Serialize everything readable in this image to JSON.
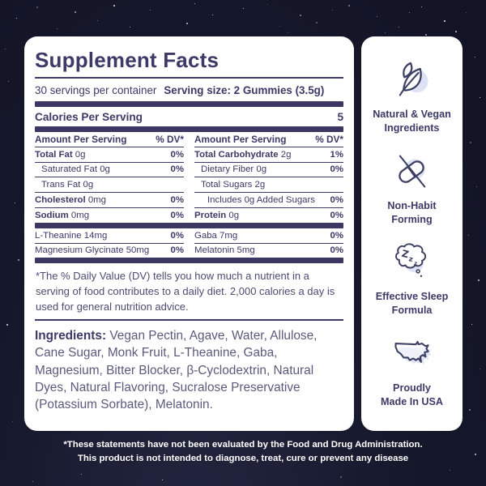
{
  "panel": {
    "title": "Supplement Facts",
    "servings_line": "30 servings per container",
    "serving_size_line": "Serving size: 2 Gummies (3.5g)",
    "calories_label": "Calories Per Serving",
    "calories_value": "5",
    "table": {
      "header_label": "Amount Per Serving",
      "header_dv": "% DV*",
      "left_rows": [
        {
          "name": "Total Fat",
          "amount": "0g",
          "dv": "0%",
          "bold": true,
          "indent": 0
        },
        {
          "name": "Saturated Fat",
          "amount": "0g",
          "dv": "0%",
          "bold": false,
          "indent": 1
        },
        {
          "name": "Trans Fat",
          "amount": "0g",
          "dv": "",
          "bold": false,
          "indent": 1
        },
        {
          "name": "Cholesterol",
          "amount": "0mg",
          "dv": "0%",
          "bold": true,
          "indent": 0
        },
        {
          "name": "Sodium",
          "amount": "0mg",
          "dv": "0%",
          "bold": true,
          "indent": 0
        }
      ],
      "right_rows": [
        {
          "name": "Total Carbohydrate",
          "amount": "2g",
          "dv": "1%",
          "bold": true,
          "indent": 0
        },
        {
          "name": "Dietary Fiber",
          "amount": "0g",
          "dv": "0%",
          "bold": false,
          "indent": 1
        },
        {
          "name": "Total Sugars",
          "amount": "2g",
          "dv": "",
          "bold": false,
          "indent": 1
        },
        {
          "name": "Includes 0g Added Sugars",
          "amount": "",
          "dv": "0%",
          "bold": false,
          "indent": 2
        },
        {
          "name": "Protein",
          "amount": "0g",
          "dv": "0%",
          "bold": true,
          "indent": 0
        }
      ],
      "left_active_rows": [
        {
          "name": "L-Theanine",
          "amount": "14mg",
          "dv": "0%",
          "bold": false,
          "indent": 0
        },
        {
          "name": "Magnesium Glycinate",
          "amount": "50mg",
          "dv": "0%",
          "bold": false,
          "indent": 0
        }
      ],
      "right_active_rows": [
        {
          "name": "Gaba",
          "amount": "7mg",
          "dv": "0%",
          "bold": false,
          "indent": 0
        },
        {
          "name": "Melatonin",
          "amount": "5mg",
          "dv": "0%",
          "bold": false,
          "indent": 0
        }
      ]
    },
    "footnote": "*The % Daily Value (DV) tells you how much a nutrient in a serving of food contributes to a daily diet. 2,000 calories a day is used for general nutrition advice.",
    "ingredients_label": "Ingredients:",
    "ingredients_text": " Vegan Pectin, Agave, Water, Allulose, Cane Sugar, Monk Fruit, L-Theanine, Gaba, Magnesium, Bitter Blocker, β-Cyclodextrin, Natural Dyes, Natural Flavoring, Sucralose Preservative (Potassium Sorbate), Melatonin."
  },
  "badges": [
    {
      "icon": "leaf-icon",
      "line1": "Natural & Vegan",
      "line2": "Ingredients"
    },
    {
      "icon": "crossed-pill-icon",
      "line1": "Non-Habit",
      "line2": "Forming"
    },
    {
      "icon": "sleep-cloud-icon",
      "line1": "Effective Sleep",
      "line2": "Formula"
    },
    {
      "icon": "usa-map-icon",
      "line1": "Proudly",
      "line2": "Made In USA"
    }
  ],
  "disclaimer": {
    "line1": "*These statements have not been evaluated by the Food and Drug Administration.",
    "line2": "This product is not intended to diagnose, treat, cure or prevent any disease"
  },
  "colors": {
    "background": "#15172b",
    "card": "#ffffff",
    "navy_text": "#3c3a67",
    "thick_bar": "#3b3864",
    "muted_text": "#5b5a7d",
    "icon_accent": "#dde2f4",
    "disclaimer_text": "#ffffff"
  }
}
